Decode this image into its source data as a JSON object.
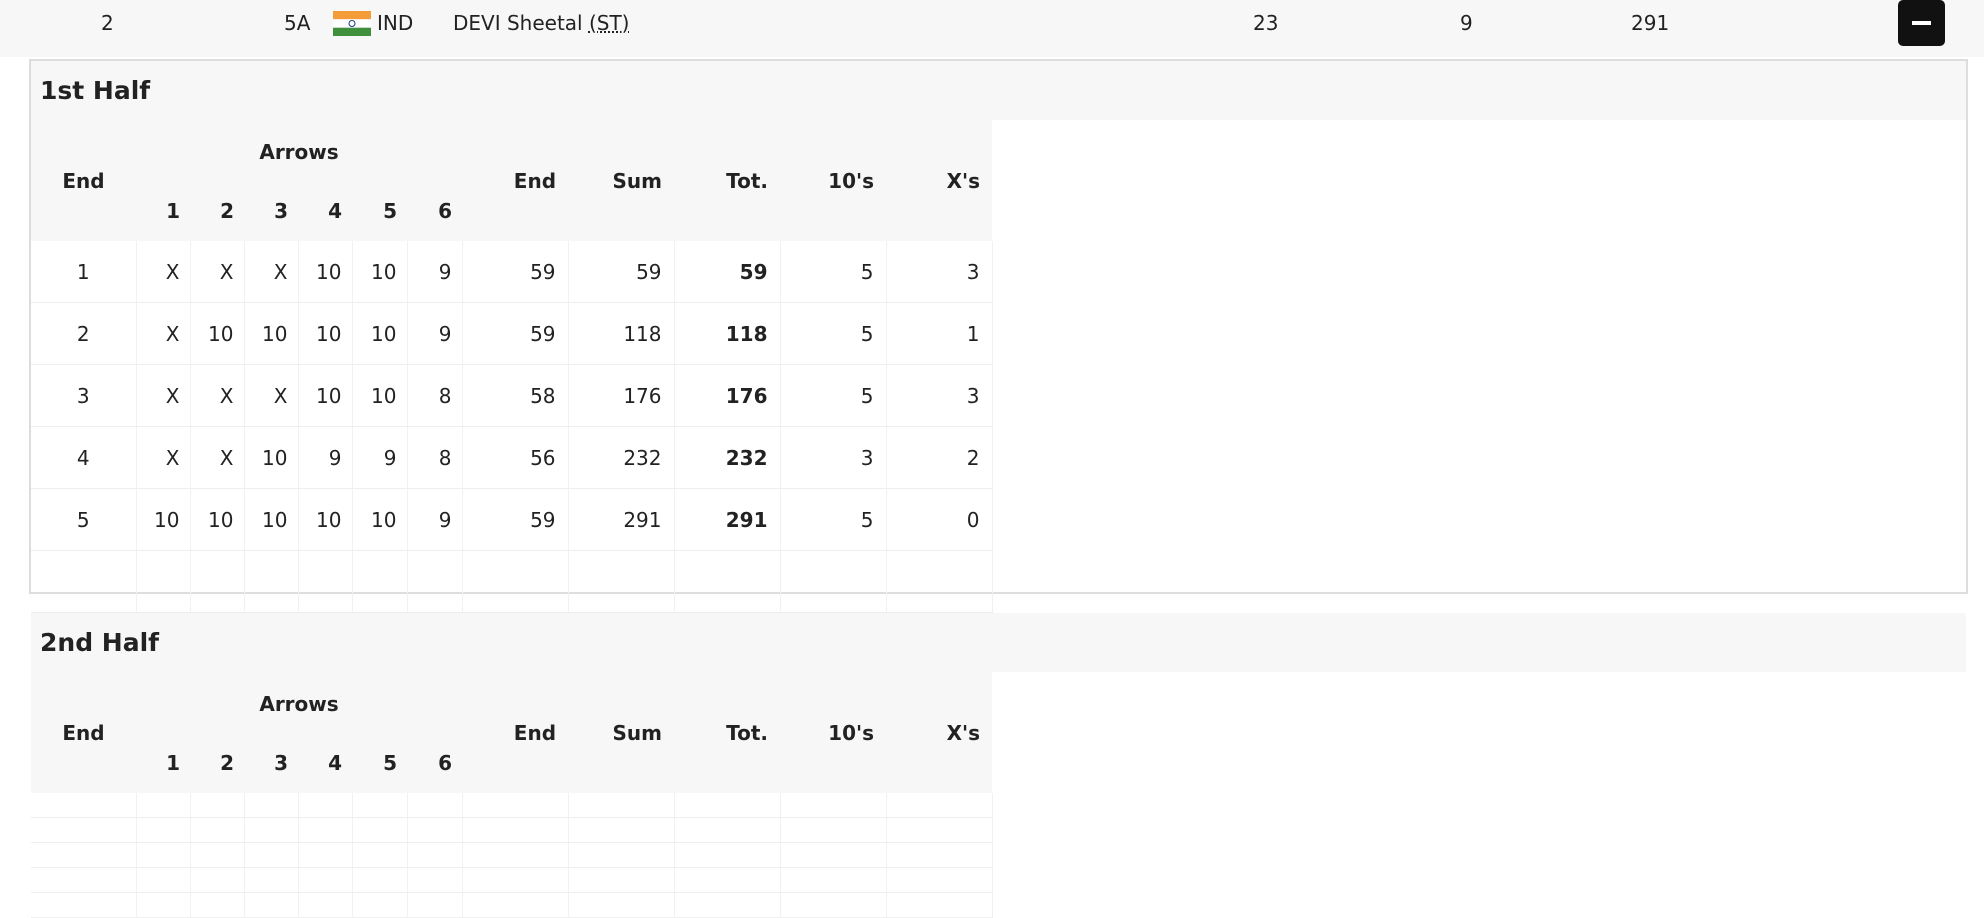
{
  "athlete_row": {
    "rank": "2",
    "target": "5A",
    "country": "IND",
    "name": "DEVI Sheetal",
    "category": "(ST)",
    "score_a": "23",
    "score_b": "9",
    "total": "291"
  },
  "panels": [
    {
      "title": "1st Half",
      "header": {
        "end": "End",
        "arrows": "Arrows",
        "arrow_numbers": [
          "1",
          "2",
          "3",
          "4",
          "5",
          "6"
        ],
        "columns": [
          "End",
          "Sum",
          "Tot.",
          "10's",
          "X's"
        ]
      },
      "rows": [
        [
          "1",
          "X",
          "X",
          "X",
          "10",
          "10",
          "9",
          "59",
          "59",
          "59",
          "5",
          "3"
        ],
        [
          "2",
          "X",
          "10",
          "10",
          "10",
          "10",
          "9",
          "59",
          "118",
          "118",
          "5",
          "1"
        ],
        [
          "3",
          "X",
          "X",
          "X",
          "10",
          "10",
          "8",
          "58",
          "176",
          "176",
          "5",
          "3"
        ],
        [
          "4",
          "X",
          "X",
          "10",
          "9",
          "9",
          "8",
          "56",
          "232",
          "232",
          "3",
          "2"
        ],
        [
          "5",
          "10",
          "10",
          "10",
          "10",
          "10",
          "9",
          "59",
          "291",
          "291",
          "5",
          "0"
        ]
      ]
    },
    {
      "title": "2nd Half",
      "header": {
        "end": "End",
        "arrows": "Arrows",
        "arrow_numbers": [
          "1",
          "2",
          "3",
          "4",
          "5",
          "6"
        ],
        "columns": [
          "End",
          "Sum",
          "Tot.",
          "10's",
          "X's"
        ]
      },
      "rows": []
    }
  ]
}
